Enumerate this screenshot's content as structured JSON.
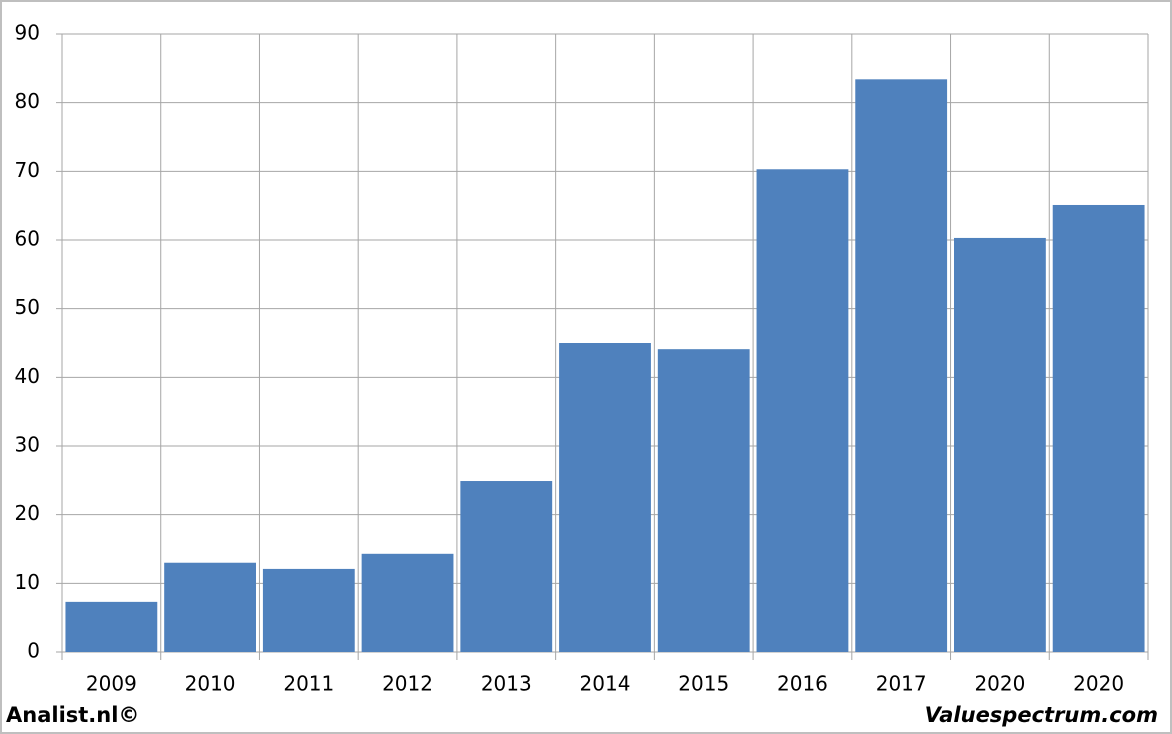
{
  "chart_data": {
    "type": "bar",
    "categories": [
      "2009",
      "2010",
      "2011",
      "2012",
      "2013",
      "2014",
      "2015",
      "2016",
      "2017",
      "2020",
      "2020"
    ],
    "values": [
      7.3,
      13.0,
      12.1,
      14.3,
      24.9,
      45.0,
      44.1,
      70.3,
      83.4,
      60.3,
      65.1
    ],
    "color": "#4f81bd",
    "ylim": [
      0,
      90
    ],
    "yticks": [
      0,
      10,
      20,
      30,
      40,
      50,
      60,
      70,
      80,
      90
    ],
    "grid": true,
    "source_left": "Analist.nl©",
    "source_right": "Valuespectrum.com"
  }
}
